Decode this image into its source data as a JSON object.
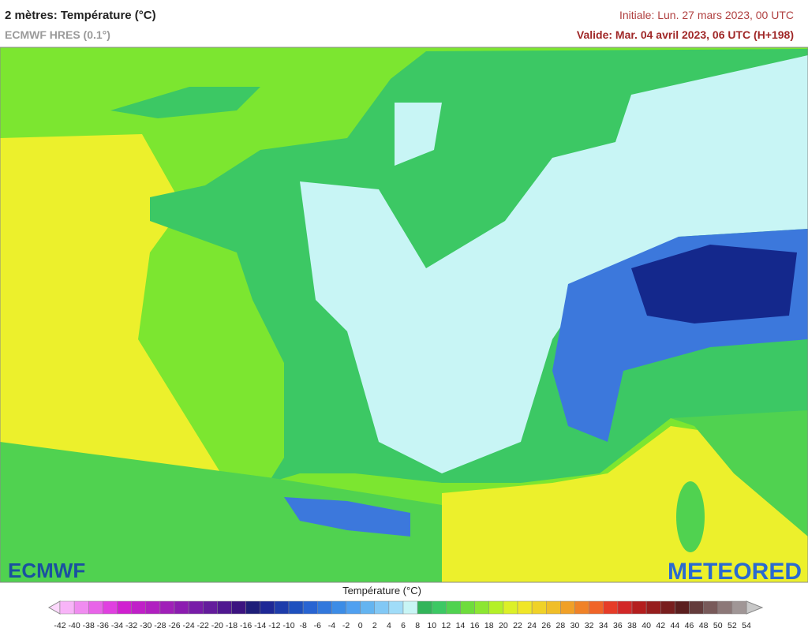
{
  "header": {
    "title": "2 mètres: Température (°C)",
    "subtitle": "ECMWF HRES (0.1°)",
    "init": "Initiale: Lun. 27 mars 2023, 00 UTC",
    "valid": "Valide: Mar. 04 avril 2023, 06 UTC (H+198)"
  },
  "logos": {
    "left": "ECMWF",
    "right": "METEORED"
  },
  "colorbar": {
    "title": "Température (°C)",
    "labels": [
      -42,
      -40,
      -38,
      -36,
      -34,
      -32,
      -30,
      -28,
      -26,
      -24,
      -22,
      -20,
      -18,
      -16,
      -14,
      -12,
      -10,
      -8,
      -6,
      -4,
      -2,
      0,
      2,
      4,
      6,
      8,
      10,
      12,
      14,
      16,
      18,
      20,
      22,
      24,
      26,
      28,
      30,
      32,
      34,
      36,
      38,
      40,
      42,
      44,
      46,
      48,
      50,
      52,
      54
    ],
    "under_color": "#fcd8fc",
    "over_color": "#c8c8c8",
    "colors": [
      "#f8b4f8",
      "#f08cf0",
      "#e864e8",
      "#e040e0",
      "#d020d0",
      "#c020c8",
      "#b020c0",
      "#a020b8",
      "#8c1cb0",
      "#781ca8",
      "#641c9c",
      "#501890",
      "#3c1480",
      "#1e1e78",
      "#1e2896",
      "#1e3caa",
      "#1e50be",
      "#2864d2",
      "#3278dc",
      "#3c8ce6",
      "#50a0f0",
      "#64b4f0",
      "#82c8f5",
      "#a0dcf8",
      "#c8f5f5",
      "#32b45a",
      "#3cc864",
      "#50d250",
      "#6edc3c",
      "#8ce632",
      "#b4f028",
      "#dcf028",
      "#f0e628",
      "#f0d228",
      "#f0be28",
      "#f0a028",
      "#f08228",
      "#f06428",
      "#e63c28",
      "#d22828",
      "#b41e1e",
      "#961e1e",
      "#781e1e",
      "#5a1e1e",
      "#643c3c",
      "#785a5a",
      "#8c7878",
      "#a09696"
    ]
  }
}
